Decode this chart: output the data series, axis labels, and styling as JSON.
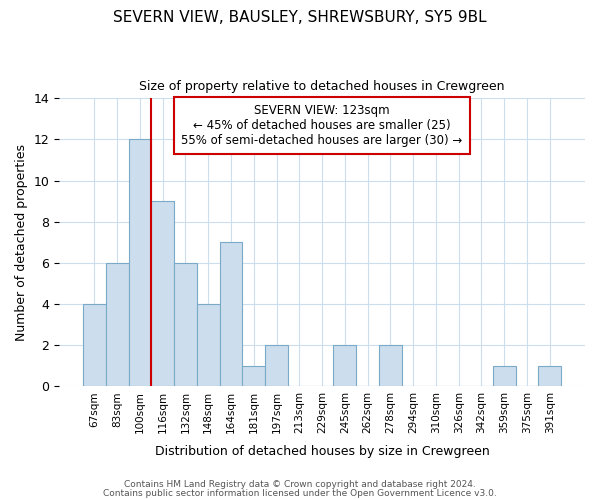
{
  "title": "SEVERN VIEW, BAUSLEY, SHREWSBURY, SY5 9BL",
  "subtitle": "Size of property relative to detached houses in Crewgreen",
  "xlabel": "Distribution of detached houses by size in Crewgreen",
  "ylabel": "Number of detached properties",
  "bin_labels": [
    "67sqm",
    "83sqm",
    "100sqm",
    "116sqm",
    "132sqm",
    "148sqm",
    "164sqm",
    "181sqm",
    "197sqm",
    "213sqm",
    "229sqm",
    "245sqm",
    "262sqm",
    "278sqm",
    "294sqm",
    "310sqm",
    "326sqm",
    "342sqm",
    "359sqm",
    "375sqm",
    "391sqm"
  ],
  "bar_heights": [
    4,
    6,
    12,
    9,
    6,
    4,
    7,
    1,
    2,
    0,
    0,
    2,
    0,
    2,
    0,
    0,
    0,
    0,
    1,
    0,
    1
  ],
  "bar_color": "#ccdded",
  "bar_edge_color": "#7baac8",
  "vline_color": "#cc0000",
  "annotation_title": "SEVERN VIEW: 123sqm",
  "annotation_line1": "← 45% of detached houses are smaller (25)",
  "annotation_line2": "55% of semi-detached houses are larger (30) →",
  "annotation_box_edge": "#cc0000",
  "ylim": [
    0,
    14
  ],
  "yticks": [
    0,
    2,
    4,
    6,
    8,
    10,
    12,
    14
  ],
  "footer1": "Contains HM Land Registry data © Crown copyright and database right 2024.",
  "footer2": "Contains public sector information licensed under the Open Government Licence v3.0."
}
